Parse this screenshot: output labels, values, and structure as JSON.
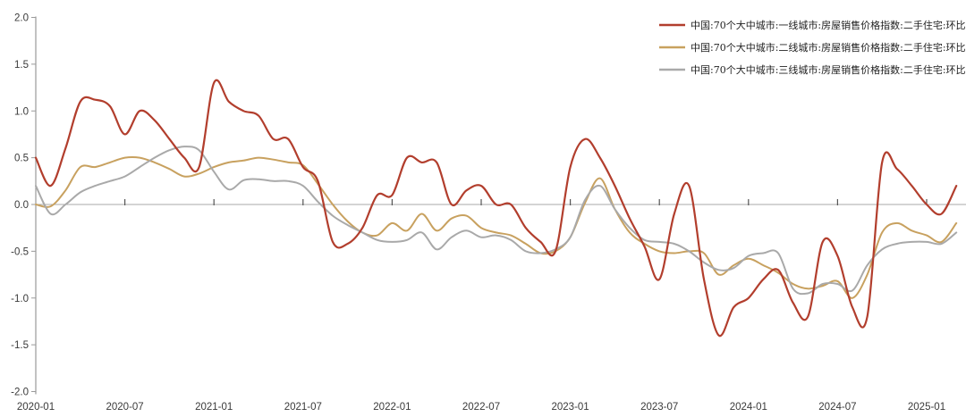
{
  "chart_data": {
    "type": "line",
    "title": "",
    "x_start": "2020-01",
    "x_frequency": "monthly",
    "x_points": 63,
    "x_end": "2025-03",
    "x_tick_labels": [
      "2020-01",
      "2020-07",
      "2021-01",
      "2021-07",
      "2022-01",
      "2022-07",
      "2023-01",
      "2023-07",
      "2024-01",
      "2024-07",
      "2025-01"
    ],
    "ylim": [
      -2.0,
      2.0
    ],
    "y_ticks": [
      2.0,
      1.5,
      1.0,
      0.5,
      0.0,
      -0.5,
      -1.0,
      -1.5,
      -2.0
    ],
    "grid": false,
    "zero_line": true,
    "legend_position": "top-right",
    "colors": {
      "axis": "#9a9a9a",
      "zero_line": "#a8a8a8",
      "tick": "#555555",
      "label": "#3a3a3a",
      "legend_text": "#222222",
      "background": "#ffffff"
    },
    "series": [
      {
        "name": "中国:70个大中城市:一线城市:房屋销售价格指数:二手住宅:环比",
        "color": "#b23e2d",
        "stroke_width": 2.2,
        "values": [
          0.5,
          0.2,
          0.6,
          1.1,
          1.12,
          1.05,
          0.75,
          1.0,
          0.9,
          0.7,
          0.5,
          0.4,
          1.3,
          1.1,
          1.0,
          0.95,
          0.7,
          0.7,
          0.4,
          0.25,
          -0.4,
          -0.42,
          -0.25,
          0.1,
          0.1,
          0.5,
          0.45,
          0.45,
          0.0,
          0.15,
          0.2,
          0.0,
          0.0,
          -0.25,
          -0.4,
          -0.5,
          0.4,
          0.7,
          0.5,
          0.2,
          -0.15,
          -0.45,
          -0.8,
          -0.1,
          0.2,
          -0.8,
          -1.4,
          -1.1,
          -1.0,
          -0.8,
          -0.7,
          -1.05,
          -1.2,
          -0.4,
          -0.55,
          -1.1,
          -1.2,
          0.45,
          0.38,
          0.2,
          0.0,
          -0.1,
          0.2
        ]
      },
      {
        "name": "中国:70个大中城市:二线城市:房屋销售价格指数:二手住宅:环比",
        "color": "#c8a15f",
        "stroke_width": 2.0,
        "values": [
          0.0,
          -0.02,
          0.15,
          0.4,
          0.4,
          0.45,
          0.5,
          0.5,
          0.45,
          0.38,
          0.3,
          0.33,
          0.4,
          0.45,
          0.47,
          0.5,
          0.48,
          0.45,
          0.42,
          0.22,
          0.0,
          -0.18,
          -0.3,
          -0.33,
          -0.2,
          -0.28,
          -0.1,
          -0.28,
          -0.15,
          -0.12,
          -0.25,
          -0.3,
          -0.33,
          -0.42,
          -0.52,
          -0.5,
          -0.35,
          0.02,
          0.28,
          -0.05,
          -0.3,
          -0.42,
          -0.5,
          -0.52,
          -0.5,
          -0.52,
          -0.75,
          -0.65,
          -0.58,
          -0.65,
          -0.73,
          -0.85,
          -0.9,
          -0.87,
          -0.82,
          -1.0,
          -0.75,
          -0.3,
          -0.2,
          -0.28,
          -0.33,
          -0.4,
          -0.2
        ]
      },
      {
        "name": "中国:70个大中城市:三线城市:房屋销售价格指数:二手住宅:环比",
        "color": "#a9a9a9",
        "stroke_width": 2.0,
        "values": [
          0.2,
          -0.1,
          0.0,
          0.13,
          0.2,
          0.25,
          0.3,
          0.4,
          0.5,
          0.58,
          0.62,
          0.58,
          0.35,
          0.16,
          0.26,
          0.27,
          0.25,
          0.25,
          0.2,
          0.03,
          -0.12,
          -0.22,
          -0.3,
          -0.38,
          -0.4,
          -0.38,
          -0.3,
          -0.48,
          -0.35,
          -0.28,
          -0.35,
          -0.33,
          -0.38,
          -0.5,
          -0.52,
          -0.48,
          -0.35,
          0.05,
          0.2,
          -0.05,
          -0.25,
          -0.38,
          -0.4,
          -0.42,
          -0.5,
          -0.62,
          -0.7,
          -0.68,
          -0.55,
          -0.52,
          -0.52,
          -0.9,
          -0.95,
          -0.85,
          -0.85,
          -0.92,
          -0.65,
          -0.48,
          -0.42,
          -0.4,
          -0.4,
          -0.42,
          -0.3
        ]
      }
    ]
  }
}
